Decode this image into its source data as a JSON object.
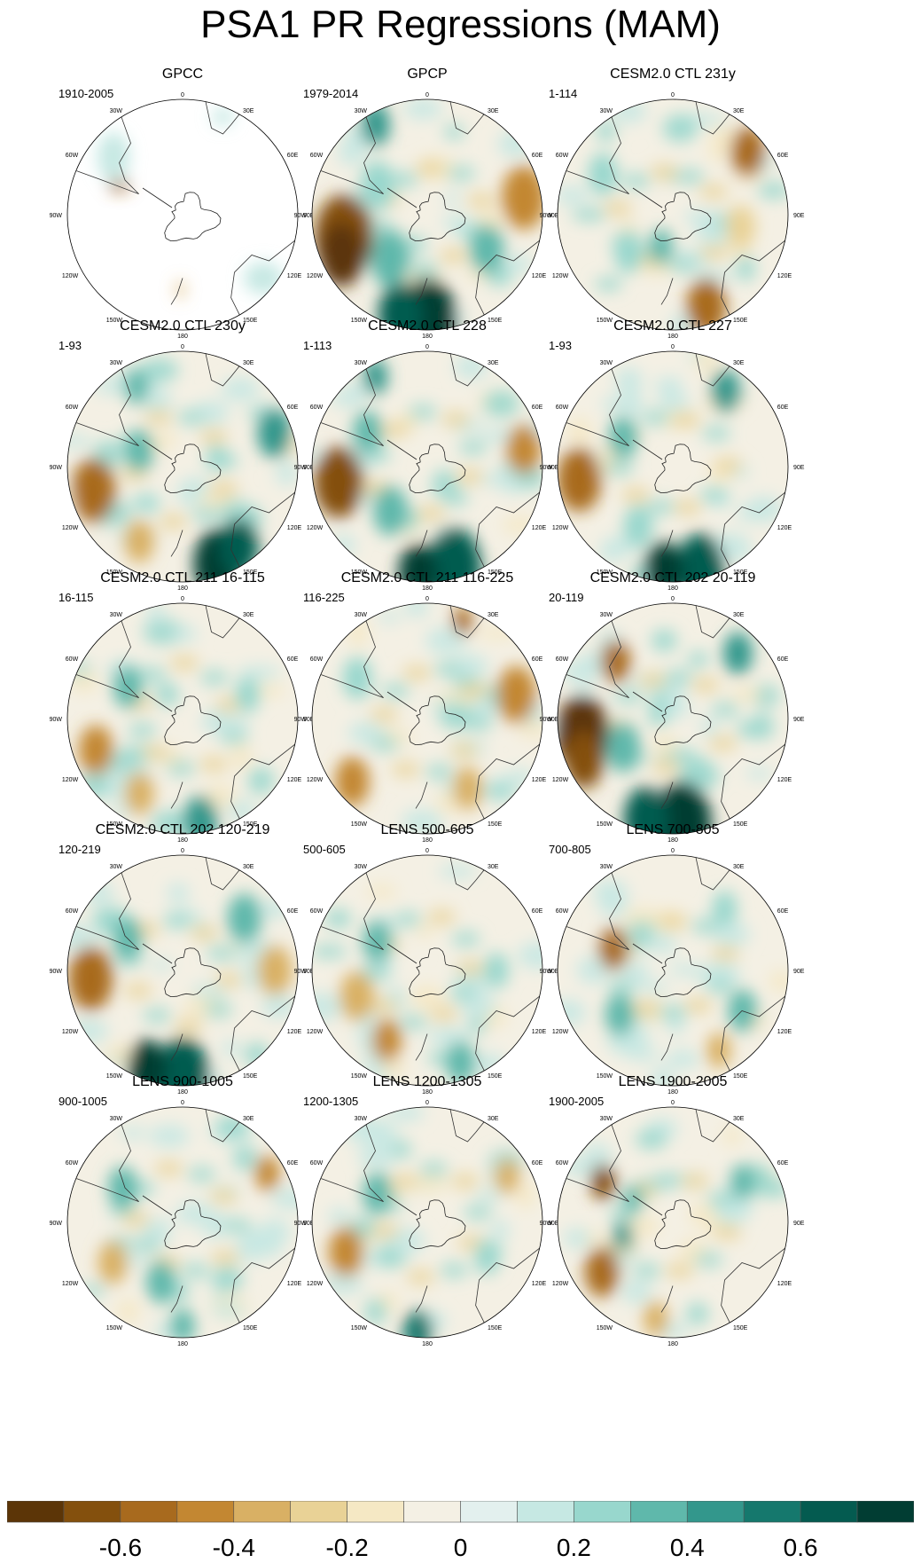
{
  "title": "PSA1 PR Regressions (MAM)",
  "map_labels": {
    "top": "0",
    "bottom": "180",
    "left": [
      "30W",
      "60W",
      "90W",
      "120W",
      "150W"
    ],
    "right": [
      "30E",
      "60E",
      "90E",
      "120E",
      "150E"
    ]
  },
  "panels": [
    {
      "title": "GPCC",
      "period": "1910-2005"
    },
    {
      "title": "GPCP",
      "period": "1979-2014"
    },
    {
      "title": "CESM2.0 CTL 231y",
      "period": "1-114"
    },
    {
      "title": "CESM2.0 CTL 230y",
      "period": "1-93"
    },
    {
      "title": "CESM2.0 CTL 228",
      "period": "1-113"
    },
    {
      "title": "CESM2.0 CTL 227",
      "period": "1-93"
    },
    {
      "title": "CESM2.0 CTL 211 16-115",
      "period": "16-115"
    },
    {
      "title": "CESM2.0 CTL 211 116-225",
      "period": "116-225"
    },
    {
      "title": "CESM2.0 CTL 202 20-119",
      "period": "20-119"
    },
    {
      "title": "CESM2.0 CTL 202 120-219",
      "period": "120-219"
    },
    {
      "title": "LENS 500-605",
      "period": "500-605"
    },
    {
      "title": "LENS 700-805",
      "period": "700-805"
    },
    {
      "title": "LENS 900-1005",
      "period": "900-1005"
    },
    {
      "title": "LENS 1200-1305",
      "period": "1200-1305"
    },
    {
      "title": "LENS 1900-2005",
      "period": "1900-2005"
    }
  ],
  "colorbar": {
    "colors": [
      "#5c3507",
      "#84500d",
      "#a86a1e",
      "#c38732",
      "#d9b064",
      "#e9d296",
      "#f5e8c4",
      "#f4f0e4",
      "#e3f0ee",
      "#c6e8e3",
      "#98d7cd",
      "#5fb8ab",
      "#33978c",
      "#15786d",
      "#045b50",
      "#013d33"
    ],
    "tick_labels": [
      "-0.6",
      "-0.4",
      "-0.2",
      "0",
      "0.2",
      "0.4",
      "0.6"
    ],
    "ticks": [
      -0.6,
      -0.4,
      -0.2,
      0,
      0.2,
      0.4,
      0.6
    ],
    "range": [
      -0.8,
      0.8
    ]
  }
}
